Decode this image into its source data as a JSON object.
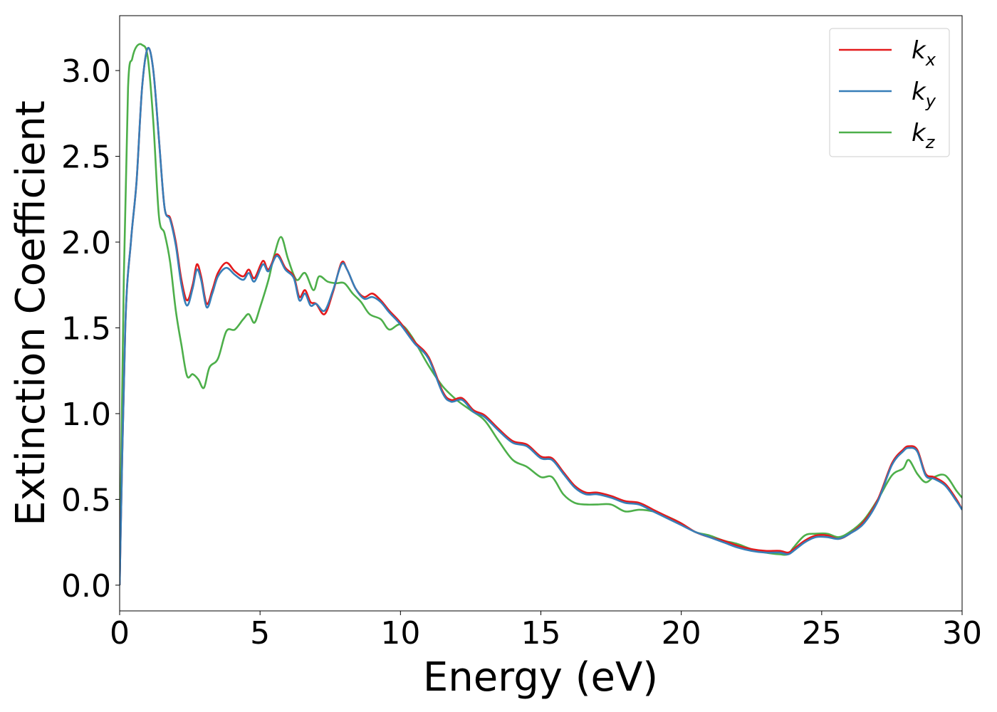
{
  "chart_data": {
    "type": "line",
    "xlabel": "Energy (eV)",
    "ylabel": "Extinction Coefficient",
    "xlim": [
      0,
      30
    ],
    "ylim": [
      -0.15,
      3.32
    ],
    "xticks": [
      0,
      5,
      10,
      15,
      20,
      25,
      30
    ],
    "xtick_labels": [
      "0",
      "5",
      "10",
      "15",
      "20",
      "25",
      "30"
    ],
    "yticks": [
      0.0,
      0.5,
      1.0,
      1.5,
      2.0,
      2.5,
      3.0
    ],
    "ytick_labels": [
      "0.0",
      "0.5",
      "1.0",
      "1.5",
      "2.0",
      "2.5",
      "3.0"
    ],
    "grid": false,
    "legend_position": "top-right",
    "series": [
      {
        "name": "k_x",
        "label_main": "k",
        "label_sub": "x",
        "color": "#e41a1c",
        "points": [
          [
            0,
            0
          ],
          [
            0.2,
            1.5
          ],
          [
            0.4,
            2.0
          ],
          [
            0.6,
            2.35
          ],
          [
            0.8,
            2.9
          ],
          [
            1.0,
            3.13
          ],
          [
            1.2,
            3.0
          ],
          [
            1.4,
            2.6
          ],
          [
            1.6,
            2.2
          ],
          [
            1.8,
            2.14
          ],
          [
            2.0,
            2.0
          ],
          [
            2.2,
            1.78
          ],
          [
            2.4,
            1.66
          ],
          [
            2.6,
            1.75
          ],
          [
            2.75,
            1.87
          ],
          [
            2.9,
            1.8
          ],
          [
            3.1,
            1.64
          ],
          [
            3.3,
            1.72
          ],
          [
            3.5,
            1.82
          ],
          [
            3.8,
            1.88
          ],
          [
            4.1,
            1.83
          ],
          [
            4.4,
            1.8
          ],
          [
            4.6,
            1.84
          ],
          [
            4.8,
            1.79
          ],
          [
            5.1,
            1.89
          ],
          [
            5.3,
            1.84
          ],
          [
            5.6,
            1.93
          ],
          [
            5.9,
            1.85
          ],
          [
            6.2,
            1.8
          ],
          [
            6.4,
            1.68
          ],
          [
            6.6,
            1.72
          ],
          [
            6.8,
            1.65
          ],
          [
            7.0,
            1.64
          ],
          [
            7.3,
            1.58
          ],
          [
            7.6,
            1.71
          ],
          [
            7.9,
            1.88
          ],
          [
            8.1,
            1.84
          ],
          [
            8.4,
            1.73
          ],
          [
            8.7,
            1.68
          ],
          [
            9.0,
            1.7
          ],
          [
            9.3,
            1.66
          ],
          [
            9.6,
            1.6
          ],
          [
            10.0,
            1.53
          ],
          [
            10.5,
            1.42
          ],
          [
            11.0,
            1.33
          ],
          [
            11.5,
            1.13
          ],
          [
            11.8,
            1.08
          ],
          [
            12.2,
            1.09
          ],
          [
            12.6,
            1.02
          ],
          [
            13.0,
            0.99
          ],
          [
            13.5,
            0.91
          ],
          [
            14.0,
            0.84
          ],
          [
            14.5,
            0.82
          ],
          [
            15.0,
            0.75
          ],
          [
            15.4,
            0.74
          ],
          [
            15.8,
            0.66
          ],
          [
            16.2,
            0.58
          ],
          [
            16.6,
            0.54
          ],
          [
            17.0,
            0.54
          ],
          [
            17.5,
            0.52
          ],
          [
            18.0,
            0.49
          ],
          [
            18.5,
            0.48
          ],
          [
            19.0,
            0.44
          ],
          [
            19.5,
            0.4
          ],
          [
            20.0,
            0.36
          ],
          [
            20.5,
            0.31
          ],
          [
            21.0,
            0.28
          ],
          [
            21.5,
            0.26
          ],
          [
            22.0,
            0.23
          ],
          [
            22.5,
            0.21
          ],
          [
            23.0,
            0.2
          ],
          [
            23.5,
            0.2
          ],
          [
            23.8,
            0.19
          ],
          [
            24.0,
            0.21
          ],
          [
            24.4,
            0.26
          ],
          [
            24.8,
            0.29
          ],
          [
            25.2,
            0.29
          ],
          [
            25.6,
            0.27
          ],
          [
            26.0,
            0.3
          ],
          [
            26.5,
            0.37
          ],
          [
            27.0,
            0.5
          ],
          [
            27.5,
            0.71
          ],
          [
            27.9,
            0.79
          ],
          [
            28.1,
            0.81
          ],
          [
            28.4,
            0.79
          ],
          [
            28.7,
            0.65
          ],
          [
            29.0,
            0.63
          ],
          [
            29.4,
            0.59
          ],
          [
            29.8,
            0.5
          ],
          [
            30.0,
            0.44
          ]
        ]
      },
      {
        "name": "k_y",
        "label_main": "k",
        "label_sub": "y",
        "color": "#377eb8",
        "points": [
          [
            0,
            0
          ],
          [
            0.2,
            1.5
          ],
          [
            0.4,
            2.0
          ],
          [
            0.6,
            2.35
          ],
          [
            0.8,
            2.9
          ],
          [
            1.0,
            3.13
          ],
          [
            1.2,
            3.0
          ],
          [
            1.4,
            2.6
          ],
          [
            1.6,
            2.2
          ],
          [
            1.8,
            2.13
          ],
          [
            2.0,
            1.98
          ],
          [
            2.2,
            1.75
          ],
          [
            2.4,
            1.63
          ],
          [
            2.6,
            1.73
          ],
          [
            2.75,
            1.84
          ],
          [
            2.9,
            1.78
          ],
          [
            3.1,
            1.62
          ],
          [
            3.3,
            1.7
          ],
          [
            3.5,
            1.8
          ],
          [
            3.8,
            1.85
          ],
          [
            4.1,
            1.81
          ],
          [
            4.4,
            1.78
          ],
          [
            4.6,
            1.82
          ],
          [
            4.8,
            1.77
          ],
          [
            5.1,
            1.87
          ],
          [
            5.3,
            1.83
          ],
          [
            5.6,
            1.92
          ],
          [
            5.9,
            1.84
          ],
          [
            6.2,
            1.79
          ],
          [
            6.4,
            1.66
          ],
          [
            6.6,
            1.7
          ],
          [
            6.8,
            1.63
          ],
          [
            7.0,
            1.64
          ],
          [
            7.3,
            1.6
          ],
          [
            7.6,
            1.72
          ],
          [
            7.9,
            1.87
          ],
          [
            8.1,
            1.84
          ],
          [
            8.4,
            1.73
          ],
          [
            8.7,
            1.67
          ],
          [
            9.0,
            1.68
          ],
          [
            9.3,
            1.65
          ],
          [
            9.6,
            1.59
          ],
          [
            10.0,
            1.52
          ],
          [
            10.5,
            1.41
          ],
          [
            11.0,
            1.32
          ],
          [
            11.5,
            1.12
          ],
          [
            11.8,
            1.07
          ],
          [
            12.2,
            1.08
          ],
          [
            12.6,
            1.01
          ],
          [
            13.0,
            0.98
          ],
          [
            13.5,
            0.9
          ],
          [
            14.0,
            0.83
          ],
          [
            14.5,
            0.81
          ],
          [
            15.0,
            0.74
          ],
          [
            15.4,
            0.73
          ],
          [
            15.8,
            0.65
          ],
          [
            16.2,
            0.57
          ],
          [
            16.6,
            0.53
          ],
          [
            17.0,
            0.53
          ],
          [
            17.5,
            0.51
          ],
          [
            18.0,
            0.48
          ],
          [
            18.5,
            0.47
          ],
          [
            19.0,
            0.43
          ],
          [
            19.5,
            0.39
          ],
          [
            20.0,
            0.35
          ],
          [
            20.5,
            0.31
          ],
          [
            21.0,
            0.28
          ],
          [
            21.5,
            0.25
          ],
          [
            22.0,
            0.22
          ],
          [
            22.5,
            0.2
          ],
          [
            23.0,
            0.19
          ],
          [
            23.5,
            0.19
          ],
          [
            23.8,
            0.18
          ],
          [
            24.0,
            0.2
          ],
          [
            24.4,
            0.25
          ],
          [
            24.8,
            0.28
          ],
          [
            25.2,
            0.28
          ],
          [
            25.6,
            0.27
          ],
          [
            26.0,
            0.3
          ],
          [
            26.5,
            0.36
          ],
          [
            27.0,
            0.49
          ],
          [
            27.5,
            0.7
          ],
          [
            27.9,
            0.78
          ],
          [
            28.1,
            0.8
          ],
          [
            28.4,
            0.78
          ],
          [
            28.7,
            0.64
          ],
          [
            29.0,
            0.62
          ],
          [
            29.4,
            0.58
          ],
          [
            29.8,
            0.49
          ],
          [
            30.0,
            0.44
          ]
        ]
      },
      {
        "name": "k_z",
        "label_main": "k",
        "label_sub": "z",
        "color": "#4daf4a",
        "points": [
          [
            0,
            0
          ],
          [
            0.15,
            1.8
          ],
          [
            0.3,
            2.9
          ],
          [
            0.45,
            3.07
          ],
          [
            0.6,
            3.14
          ],
          [
            0.8,
            3.15
          ],
          [
            1.0,
            3.08
          ],
          [
            1.2,
            2.7
          ],
          [
            1.4,
            2.15
          ],
          [
            1.6,
            2.05
          ],
          [
            1.8,
            1.88
          ],
          [
            2.0,
            1.6
          ],
          [
            2.2,
            1.4
          ],
          [
            2.4,
            1.22
          ],
          [
            2.6,
            1.23
          ],
          [
            2.8,
            1.2
          ],
          [
            3.0,
            1.15
          ],
          [
            3.2,
            1.27
          ],
          [
            3.5,
            1.32
          ],
          [
            3.8,
            1.48
          ],
          [
            4.1,
            1.49
          ],
          [
            4.4,
            1.55
          ],
          [
            4.6,
            1.58
          ],
          [
            4.8,
            1.53
          ],
          [
            5.0,
            1.62
          ],
          [
            5.3,
            1.78
          ],
          [
            5.5,
            1.92
          ],
          [
            5.75,
            2.03
          ],
          [
            6.0,
            1.9
          ],
          [
            6.3,
            1.78
          ],
          [
            6.6,
            1.82
          ],
          [
            6.9,
            1.72
          ],
          [
            7.1,
            1.8
          ],
          [
            7.4,
            1.77
          ],
          [
            7.7,
            1.76
          ],
          [
            8.0,
            1.76
          ],
          [
            8.3,
            1.7
          ],
          [
            8.6,
            1.65
          ],
          [
            8.9,
            1.58
          ],
          [
            9.3,
            1.55
          ],
          [
            9.6,
            1.49
          ],
          [
            10.0,
            1.52
          ],
          [
            10.4,
            1.45
          ],
          [
            11.0,
            1.28
          ],
          [
            11.5,
            1.16
          ],
          [
            12.0,
            1.08
          ],
          [
            12.5,
            1.02
          ],
          [
            13.0,
            0.96
          ],
          [
            13.5,
            0.84
          ],
          [
            14.0,
            0.73
          ],
          [
            14.5,
            0.69
          ],
          [
            15.0,
            0.63
          ],
          [
            15.4,
            0.63
          ],
          [
            15.8,
            0.53
          ],
          [
            16.2,
            0.48
          ],
          [
            16.6,
            0.47
          ],
          [
            17.0,
            0.47
          ],
          [
            17.5,
            0.47
          ],
          [
            18.0,
            0.43
          ],
          [
            18.5,
            0.44
          ],
          [
            19.0,
            0.43
          ],
          [
            19.5,
            0.4
          ],
          [
            20.0,
            0.36
          ],
          [
            20.5,
            0.31
          ],
          [
            21.0,
            0.29
          ],
          [
            21.5,
            0.26
          ],
          [
            22.0,
            0.24
          ],
          [
            22.5,
            0.21
          ],
          [
            23.0,
            0.19
          ],
          [
            23.5,
            0.18
          ],
          [
            23.8,
            0.18
          ],
          [
            24.0,
            0.22
          ],
          [
            24.4,
            0.29
          ],
          [
            24.8,
            0.3
          ],
          [
            25.2,
            0.3
          ],
          [
            25.6,
            0.28
          ],
          [
            26.0,
            0.31
          ],
          [
            26.5,
            0.38
          ],
          [
            27.0,
            0.5
          ],
          [
            27.5,
            0.64
          ],
          [
            27.9,
            0.68
          ],
          [
            28.1,
            0.73
          ],
          [
            28.4,
            0.65
          ],
          [
            28.7,
            0.6
          ],
          [
            29.0,
            0.63
          ],
          [
            29.4,
            0.64
          ],
          [
            29.8,
            0.55
          ],
          [
            30.0,
            0.51
          ]
        ]
      }
    ]
  }
}
